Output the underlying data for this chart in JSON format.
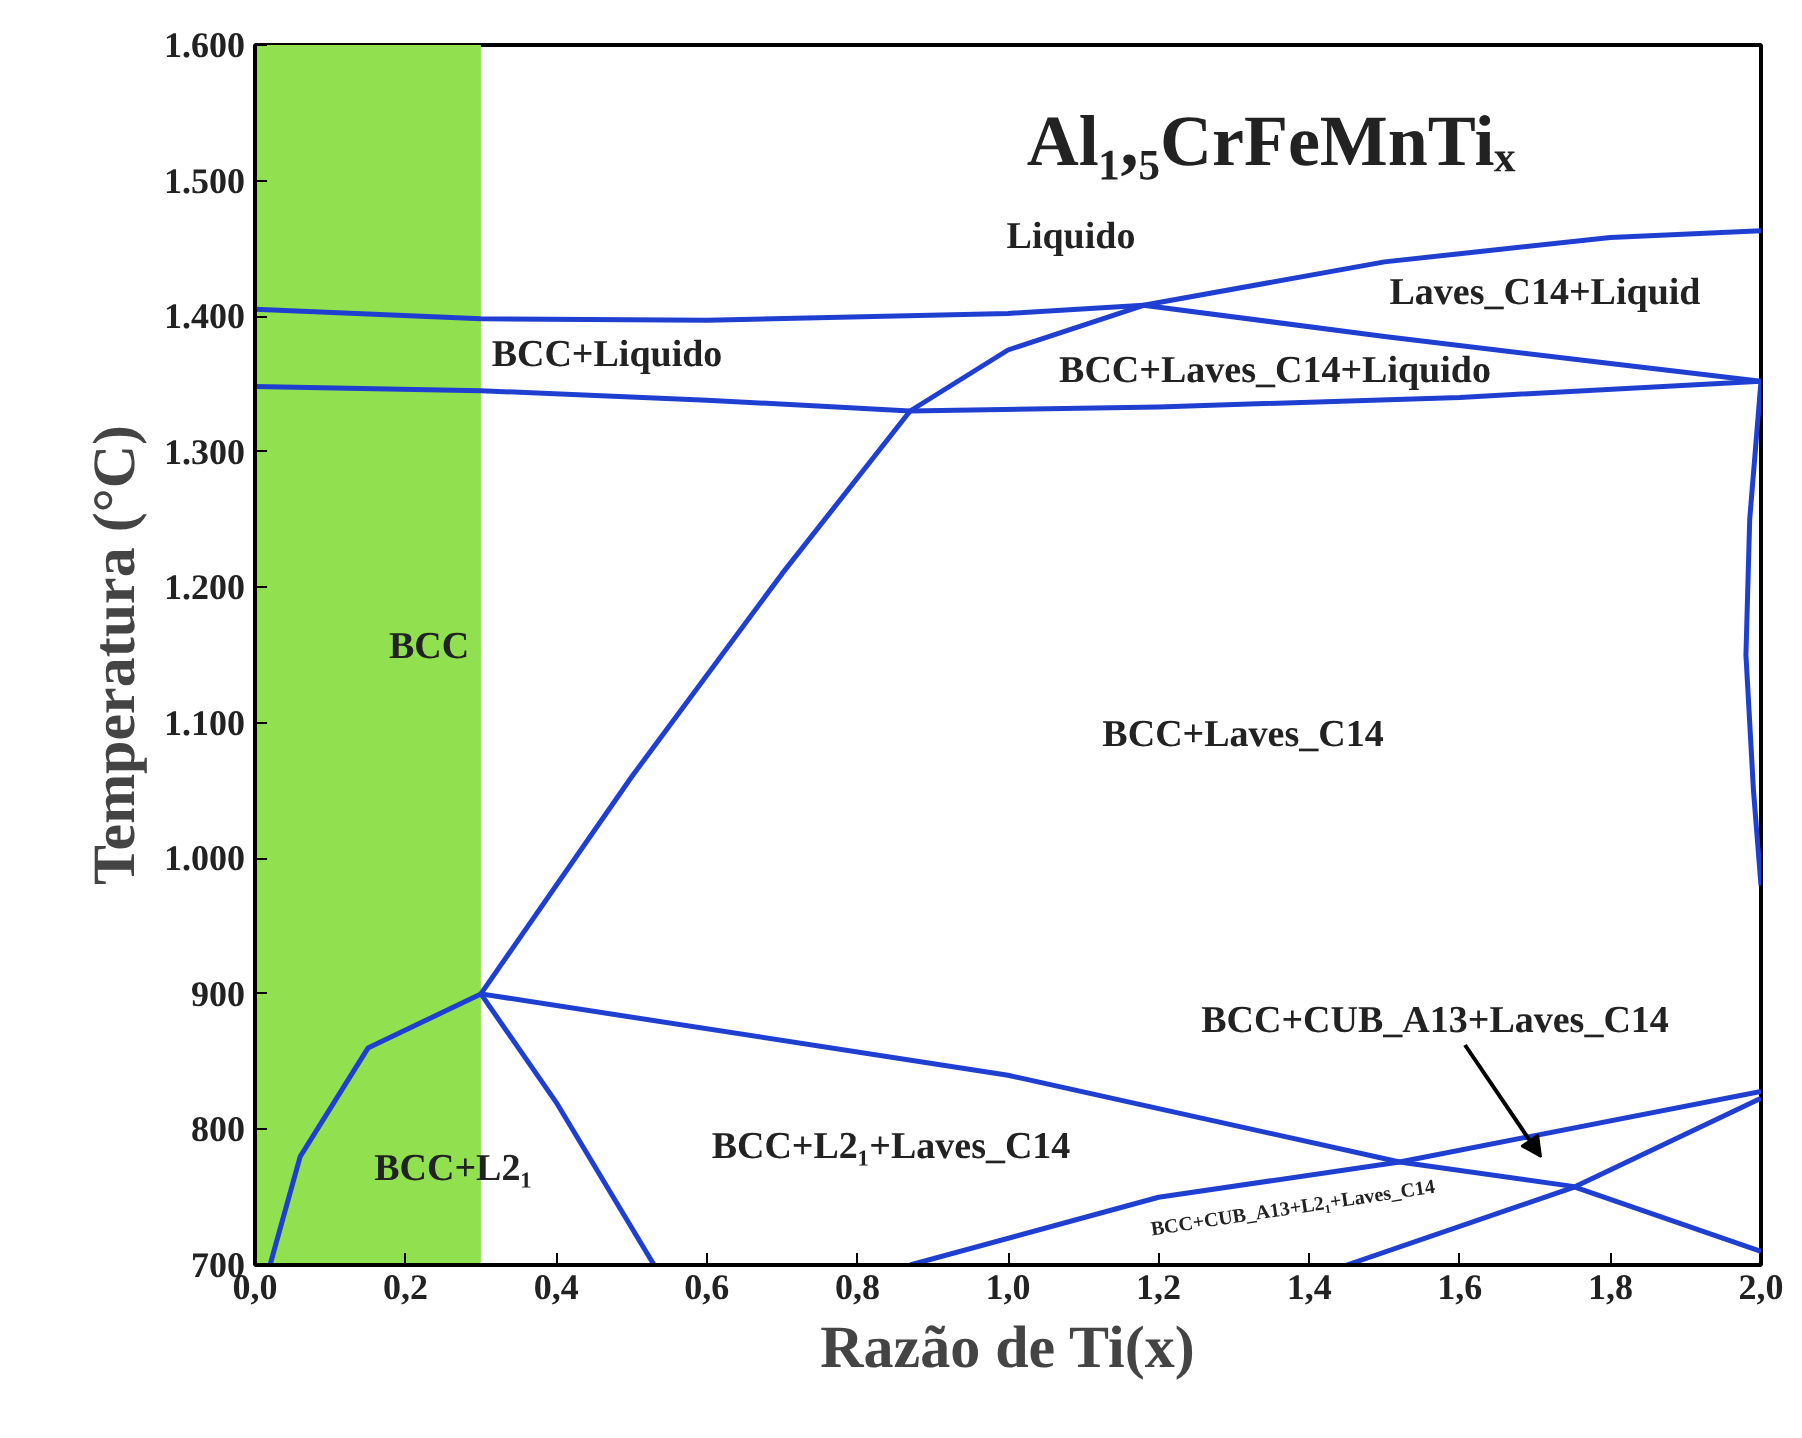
{
  "chart_data": {
    "type": "line",
    "title": "Al₁,₅CrFeMnTiₓ",
    "xlabel": "Razão de Ti(x)",
    "ylabel": "Temperatura (°C)",
    "xlim": [
      0,
      2
    ],
    "ylim": [
      700,
      1600
    ],
    "xticks": [
      {
        "value": 0,
        "label": "0,0"
      },
      {
        "value": 0.2,
        "label": "0,2"
      },
      {
        "value": 0.4,
        "label": "0,4"
      },
      {
        "value": 0.6,
        "label": "0,6"
      },
      {
        "value": 0.8,
        "label": "0,8"
      },
      {
        "value": 1.0,
        "label": "1,0"
      },
      {
        "value": 1.2,
        "label": "1,2"
      },
      {
        "value": 1.4,
        "label": "1,4"
      },
      {
        "value": 1.6,
        "label": "1,6"
      },
      {
        "value": 1.8,
        "label": "1,8"
      },
      {
        "value": 2.0,
        "label": "2,0"
      }
    ],
    "yticks": [
      700,
      800,
      900,
      {
        "value": 1000,
        "label": "1.000"
      },
      {
        "value": 1100,
        "label": "1.100"
      },
      {
        "value": 1200,
        "label": "1.200"
      },
      {
        "value": 1300,
        "label": "1.300"
      },
      {
        "value": 1400,
        "label": "1.400"
      },
      {
        "value": 1500,
        "label": "1.500"
      },
      {
        "value": 1600,
        "label": "1.600"
      }
    ],
    "grid": false,
    "marker": "none",
    "line_style": "solid",
    "series": [
      {
        "color": "#1f3fd0",
        "x": [
          0,
          0.3,
          0.6,
          1.0,
          1.18,
          1.5,
          1.8,
          2.0
        ],
        "values": [
          1405,
          1398,
          1397,
          1402,
          1408,
          1385,
          1365,
          1352
        ]
      },
      {
        "color": "#1f3fd0",
        "x": [
          0,
          0.3,
          0.6,
          0.87,
          1.2,
          1.6,
          2.0
        ],
        "values": [
          1348,
          1345,
          1338,
          1330,
          1333,
          1340,
          1352
        ]
      },
      {
        "color": "#1f3fd0",
        "x": [
          0.3,
          0.5,
          0.7,
          0.87,
          1.0,
          1.18,
          1.5,
          1.8,
          2.0
        ],
        "values": [
          900,
          1060,
          1210,
          1330,
          1375,
          1408,
          1440,
          1458,
          1463
        ]
      },
      {
        "color": "#1f3fd0",
        "x": [
          2.0,
          1.985,
          1.98,
          1.99,
          2.0
        ],
        "values": [
          1352,
          1250,
          1150,
          1050,
          980
        ]
      },
      {
        "color": "#1f3fd0",
        "x": [
          0.02,
          0.06,
          0.15,
          0.3
        ],
        "values": [
          700,
          780,
          860,
          900
        ]
      },
      {
        "color": "#1f3fd0",
        "x": [
          0.3,
          0.4,
          0.53
        ],
        "values": [
          900,
          820,
          700
        ]
      },
      {
        "color": "#1f3fd0",
        "x": [
          0.3,
          1.0,
          1.52,
          1.75,
          2.0
        ],
        "values": [
          900,
          840,
          776,
          758,
          710
        ]
      },
      {
        "color": "#1f3fd0",
        "x": [
          0.87,
          1.2,
          1.52,
          2.0
        ],
        "values": [
          700,
          750,
          776,
          828
        ]
      },
      {
        "color": "#1f3fd0",
        "x": [
          1.45,
          1.75,
          2.0
        ],
        "values": [
          700,
          757,
          823
        ]
      }
    ],
    "bands": [
      {
        "axis": "x",
        "from": 0,
        "to": 0.3,
        "color": "#90e050"
      }
    ],
    "annotations": [
      "Liquido",
      "Laves_C14+Liquid",
      "BCC+Liquido",
      "BCC+Laves_C14+Liquido",
      "BCC",
      "BCC+Laves_C14",
      "BCC+L2₁",
      "BCC+L2₁+Laves_C14",
      "BCC+CUB_A13+L2₁+Laves_C14",
      "BCC+CUB_A13+Laves_C14"
    ]
  }
}
